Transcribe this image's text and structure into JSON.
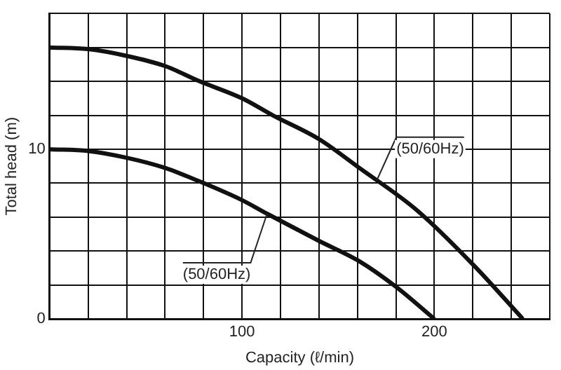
{
  "chart_data": {
    "type": "line",
    "xlabel": "Capacity (ℓ/min)",
    "ylabel": "Total head (m)",
    "xlim": [
      0,
      260
    ],
    "ylim": [
      0,
      18
    ],
    "xticks": [
      {
        "value": 0,
        "label": null
      },
      {
        "value": 20,
        "label": null
      },
      {
        "value": 40,
        "label": null
      },
      {
        "value": 60,
        "label": null
      },
      {
        "value": 80,
        "label": null
      },
      100,
      {
        "value": 120,
        "label": null
      },
      {
        "value": 140,
        "label": null
      },
      {
        "value": 160,
        "label": null
      },
      {
        "value": 180,
        "label": null
      },
      200,
      {
        "value": 220,
        "label": null
      },
      {
        "value": 240,
        "label": null
      },
      {
        "value": 260,
        "label": null
      }
    ],
    "yticks": [
      0,
      {
        "value": 2,
        "label": null
      },
      {
        "value": 4,
        "label": null
      },
      {
        "value": 6,
        "label": null
      },
      {
        "value": 8,
        "label": null
      },
      10,
      {
        "value": 12,
        "label": null
      },
      {
        "value": 14,
        "label": null
      },
      {
        "value": 16,
        "label": null
      },
      {
        "value": 18,
        "label": null
      }
    ],
    "grid": true,
    "legend": false,
    "marker": "none",
    "line_style": "solid",
    "series": [
      {
        "color": "#111111",
        "x": [
          0,
          20,
          40,
          60,
          78,
          100,
          116,
          140,
          161,
          191,
          221,
          246
        ],
        "values": [
          16,
          15.9,
          15.5,
          14.9,
          14,
          13,
          12,
          10.6,
          8.9,
          6.4,
          3.1,
          0
        ]
      },
      {
        "color": "#111111",
        "x": [
          0,
          20,
          40,
          60,
          78,
          100,
          113,
          140,
          161,
          180,
          200
        ],
        "values": [
          10,
          9.9,
          9.5,
          8.9,
          8.1,
          7,
          6.2,
          4.6,
          3.4,
          1.9,
          0
        ]
      }
    ],
    "annotations": [
      {
        "text": "(50/60Hz)",
        "x": 170,
        "y": 8.15
      },
      {
        "text": "(50/60Hz)",
        "x": 113,
        "y": 6.2
      }
    ]
  }
}
